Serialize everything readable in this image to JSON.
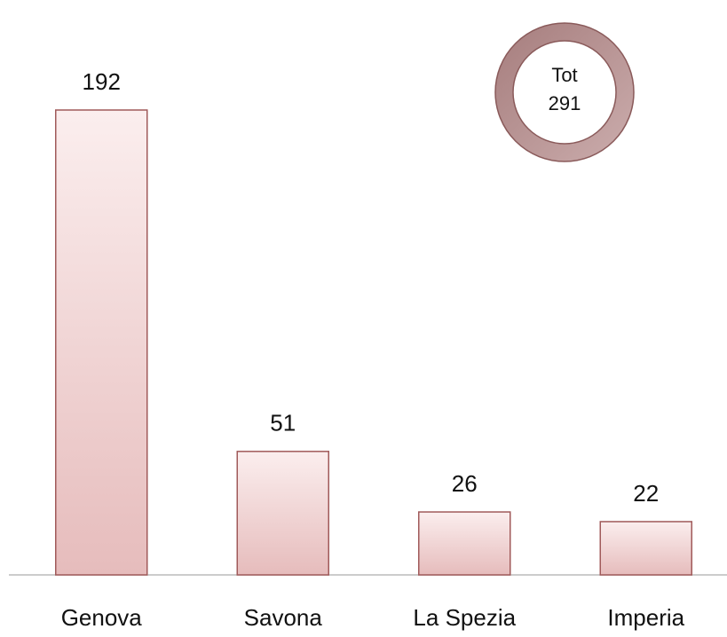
{
  "chart_data": {
    "type": "bar",
    "categories": [
      "Genova",
      "Savona",
      "La Spezia",
      "Imperia"
    ],
    "values": [
      192,
      51,
      26,
      22
    ],
    "color": "#e6bcbc",
    "total_label": "Tot",
    "total": 291
  }
}
